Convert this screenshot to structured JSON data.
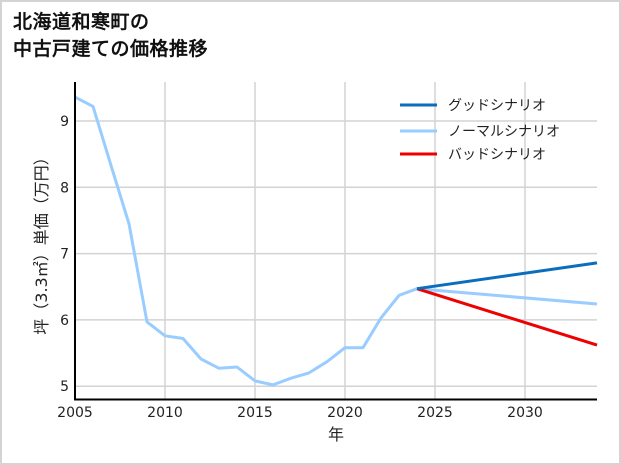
{
  "title_lines": [
    "北海道和寒町の",
    "中古戸建ての価格推移"
  ],
  "chart_data": {
    "type": "line",
    "title": "北海道和寒町の中古戸建ての価格推移",
    "xlabel": "年",
    "ylabel": "坪（3.3㎡）単価（万円）",
    "xlim": [
      2005,
      2034
    ],
    "ylim": [
      4.8,
      9.55
    ],
    "xticks": [
      2005,
      2010,
      2015,
      2020,
      2025,
      2030
    ],
    "yticks": [
      5,
      6,
      7,
      8,
      9
    ],
    "grid": true,
    "legend_position": "upper right",
    "series": [
      {
        "name": "グッドシナリオ",
        "color": "#0a6ebd",
        "x": [
          2024,
          2034
        ],
        "values": [
          6.47,
          6.86
        ]
      },
      {
        "name": "ノーマルシナリオ",
        "color": "#99ccff",
        "x": [
          2005,
          2006,
          2007,
          2008,
          2009,
          2010,
          2011,
          2012,
          2013,
          2014,
          2015,
          2016,
          2017,
          2018,
          2019,
          2020,
          2021,
          2022,
          2023,
          2024,
          2034
        ],
        "values": [
          9.36,
          9.22,
          8.33,
          7.45,
          5.97,
          5.76,
          5.72,
          5.41,
          5.27,
          5.29,
          5.08,
          5.02,
          5.12,
          5.2,
          5.37,
          5.58,
          5.58,
          6.03,
          6.37,
          6.47,
          6.24
        ]
      },
      {
        "name": "バッドシナリオ",
        "color": "#ee0000",
        "x": [
          2024,
          2034
        ],
        "values": [
          6.47,
          5.62
        ]
      }
    ]
  }
}
